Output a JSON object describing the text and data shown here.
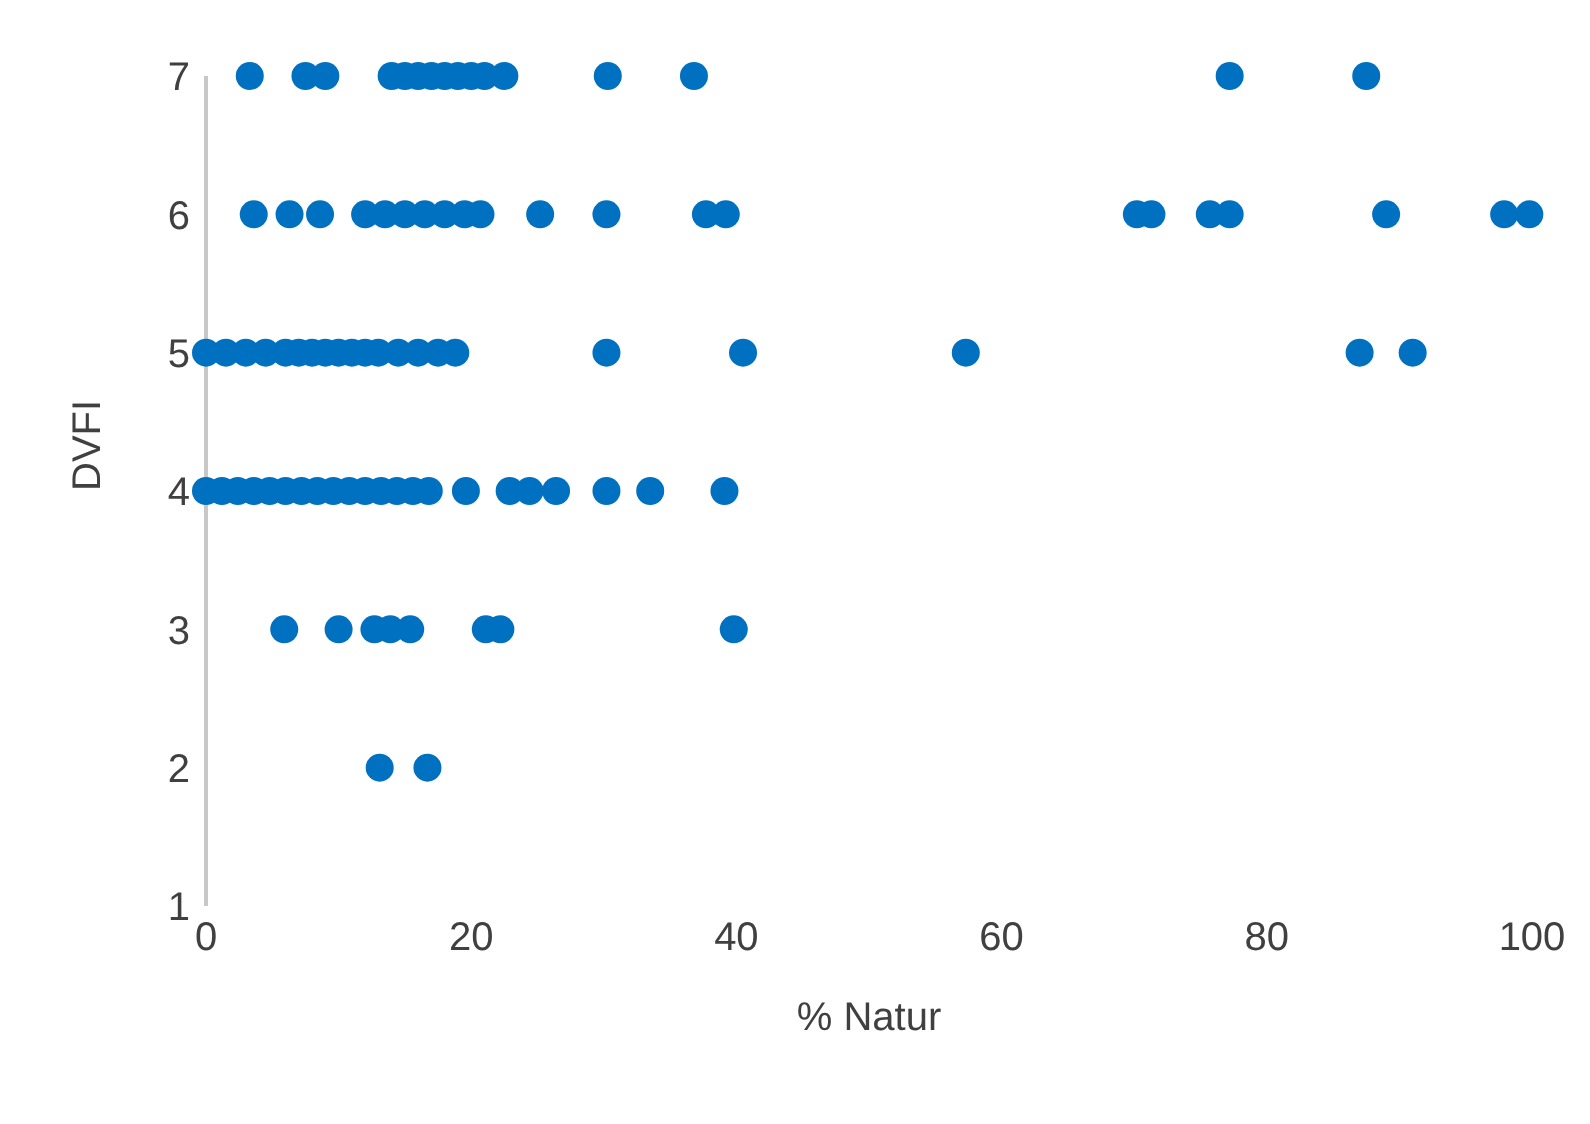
{
  "chart_data": {
    "type": "scatter",
    "xlabel": "% Natur",
    "ylabel": "DVFI",
    "marker": "circle",
    "grid": false,
    "color": "#0070c0",
    "x": [
      3.3,
      7.5,
      9,
      14,
      15,
      16,
      17,
      18,
      19,
      20,
      21,
      22.5,
      30.3,
      36.8,
      77.2,
      87.5,
      3.6,
      6.3,
      8.6,
      12,
      13.5,
      15,
      16.5,
      18,
      19.5,
      20.7,
      25.2,
      30.2,
      37.7,
      39.2,
      70.2,
      71.3,
      75.7,
      77.2,
      89,
      97.9,
      99.8,
      0,
      1.5,
      3,
      4.5,
      6,
      7,
      8,
      9,
      10,
      11,
      12,
      13,
      14.5,
      16,
      17.5,
      18.8,
      30.2,
      40.5,
      57.3,
      87,
      91,
      0,
      1.2,
      2.4,
      3.6,
      4.8,
      6,
      7.2,
      8.4,
      9.6,
      10.8,
      12,
      13.2,
      14.4,
      15.6,
      16.8,
      19.6,
      22.9,
      24.4,
      26.4,
      30.2,
      33.5,
      39.1,
      5.9,
      10,
      12.7,
      13.9,
      15.4,
      21.1,
      22.2,
      39.8,
      13.1,
      16.7
    ],
    "values": [
      7,
      7,
      7,
      7,
      7,
      7,
      7,
      7,
      7,
      7,
      7,
      7,
      7,
      7,
      7,
      7,
      6,
      6,
      6,
      6,
      6,
      6,
      6,
      6,
      6,
      6,
      6,
      6,
      6,
      6,
      6,
      6,
      6,
      6,
      6,
      6,
      6,
      5,
      5,
      5,
      5,
      5,
      5,
      5,
      5,
      5,
      5,
      5,
      5,
      5,
      5,
      5,
      5,
      5,
      5,
      5,
      5,
      5,
      4,
      4,
      4,
      4,
      4,
      4,
      4,
      4,
      4,
      4,
      4,
      4,
      4,
      4,
      4,
      4,
      4,
      4,
      4,
      4,
      4,
      4,
      3,
      3,
      3,
      3,
      3,
      3,
      3,
      3,
      2,
      2
    ],
    "xlim": [
      0,
      100
    ],
    "xticks": [
      0,
      20,
      40,
      60,
      80,
      100
    ],
    "ylim": [
      1,
      7
    ],
    "yticks": [
      1,
      2,
      3,
      4,
      5,
      6,
      7
    ]
  }
}
